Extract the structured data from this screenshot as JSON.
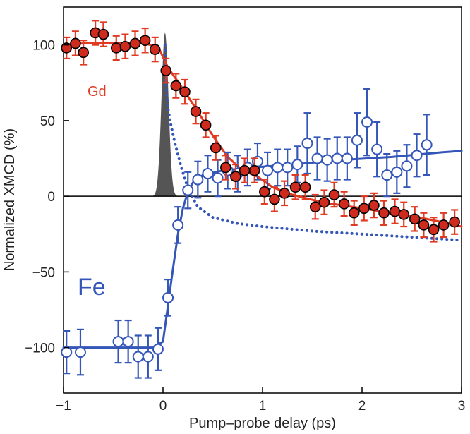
{
  "chart_data": {
    "type": "scatter",
    "xlabel": "Pump–probe delay (ps)",
    "ylabel": "Normalized XMCD (%)",
    "xlim": [
      -1,
      3
    ],
    "ylim": [
      -130,
      125
    ],
    "xticks": [
      -1,
      0,
      1,
      2,
      3
    ],
    "xtick_labels": [
      "−1",
      "0",
      "1",
      "2",
      "3"
    ],
    "yticks": [
      100,
      50,
      0,
      -50,
      -100
    ],
    "ytick_labels": [
      "100",
      "50",
      "0",
      "−50",
      "−100"
    ],
    "zero_line": true,
    "grid": false,
    "series": [
      {
        "name": "Gd",
        "color": "#e03a22",
        "marker": "filled-circle",
        "x": [
          -0.97,
          -0.88,
          -0.8,
          -0.68,
          -0.6,
          -0.47,
          -0.38,
          -0.28,
          -0.18,
          -0.08,
          0.03,
          0.13,
          0.22,
          0.33,
          0.43,
          0.53,
          0.63,
          0.73,
          0.82,
          0.92,
          1.02,
          1.12,
          1.22,
          1.33,
          1.43,
          1.53,
          1.62,
          1.72,
          1.82,
          1.92,
          2.02,
          2.12,
          2.22,
          2.33,
          2.42,
          2.53,
          2.62,
          2.72,
          2.82,
          2.93
        ],
        "values": [
          98,
          101,
          95,
          108,
          107,
          98,
          99,
          101,
          103,
          97,
          83,
          73,
          69,
          56,
          47,
          32,
          19,
          13,
          17,
          17,
          3,
          -2,
          2,
          6,
          6,
          -7,
          -4,
          1,
          -5,
          -11,
          -8,
          -6,
          -11,
          -10,
          -12,
          -15,
          -19,
          -22,
          -19,
          -17
        ],
        "error": [
          7,
          8,
          8,
          8,
          8,
          8,
          8,
          8,
          8,
          8,
          8,
          8,
          8,
          8,
          8,
          8,
          8,
          8,
          8,
          8,
          8,
          8,
          8,
          8,
          8,
          8,
          8,
          8,
          8,
          8,
          8,
          8,
          8,
          8,
          8,
          8,
          8,
          8,
          8,
          8
        ]
      },
      {
        "name": "Fe",
        "color": "#3456b8",
        "marker": "open-circle",
        "x": [
          -0.97,
          -0.83,
          -0.45,
          -0.35,
          -0.25,
          -0.15,
          -0.05,
          0.05,
          0.15,
          0.25,
          0.35,
          0.45,
          0.55,
          0.65,
          0.75,
          0.85,
          0.95,
          1.05,
          1.15,
          1.25,
          1.35,
          1.45,
          1.55,
          1.65,
          1.75,
          1.85,
          1.95,
          2.05,
          2.15,
          2.25,
          2.35,
          2.45,
          2.55,
          2.65
        ],
        "values": [
          -103,
          -103,
          -96,
          -96,
          -106,
          -106,
          -101,
          -67,
          -19,
          4,
          11,
          15,
          12,
          17,
          15,
          19,
          23,
          17,
          19,
          19,
          21,
          35,
          25,
          24,
          25,
          25,
          37,
          49,
          31,
          14,
          16,
          20,
          27,
          34
        ],
        "error": [
          14,
          15,
          14,
          14,
          14,
          14,
          14,
          12,
          12,
          12,
          12,
          12,
          12,
          12,
          12,
          12,
          12,
          12,
          12,
          12,
          12,
          20,
          14,
          14,
          14,
          14,
          18,
          22,
          18,
          14,
          14,
          14,
          14,
          20
        ]
      }
    ],
    "fit_lines": [
      {
        "series": "Gd",
        "color": "#e03a22",
        "x": [
          -1,
          -0.8,
          -0.5,
          -0.2,
          -0.05,
          0.05,
          0.2,
          0.35,
          0.5,
          0.65,
          0.8,
          0.95,
          1.1,
          1.3,
          1.6,
          1.9,
          2.2,
          2.5,
          2.8,
          3.0
        ],
        "values": [
          100,
          101,
          101,
          101,
          99,
          85,
          71,
          56,
          40,
          26,
          17,
          13,
          6,
          1,
          -4,
          -7,
          -10,
          -13,
          -17,
          -20
        ]
      },
      {
        "series": "Fe",
        "color": "#3456b8",
        "x": [
          -1,
          -0.5,
          -0.1,
          0.0,
          0.05,
          0.1,
          0.15,
          0.2,
          0.25,
          0.3,
          0.4,
          0.6,
          0.9,
          1.3,
          1.8,
          2.3,
          2.8,
          3.0
        ],
        "values": [
          -100,
          -100,
          -100,
          -96,
          -72,
          -48,
          -25,
          -8,
          3,
          9,
          14,
          17,
          19,
          21,
          24,
          26,
          29,
          30
        ]
      },
      {
        "series": "Fe",
        "style": "dotted",
        "color": "#3456b8",
        "x": [
          0.02,
          0.03,
          0.05,
          0.08,
          0.12,
          0.18,
          0.25,
          0.35,
          0.5,
          0.75,
          1.0,
          1.5,
          2.0,
          2.5,
          3.0
        ],
        "values": [
          100,
          72,
          58,
          47,
          35,
          20,
          5,
          -7,
          -14,
          -18,
          -20,
          -23,
          -25,
          -27,
          -29
        ]
      }
    ],
    "pump_pulse": {
      "color": "#555555",
      "center": 0.02,
      "peak": 108,
      "width": 0.035
    },
    "series_labels": [
      {
        "text": "Gd",
        "color": "#e03a22"
      },
      {
        "text": "Fe",
        "color": "#3456b8"
      }
    ]
  }
}
